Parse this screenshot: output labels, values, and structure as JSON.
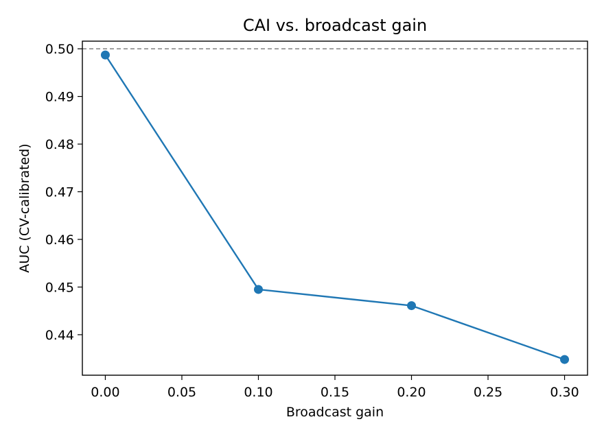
{
  "chart_data": {
    "type": "line",
    "title": "CAI vs. broadcast gain",
    "xlabel": "Broadcast gain",
    "ylabel": "AUC (CV-calibrated)",
    "xlim": [
      -0.015,
      0.315
    ],
    "ylim": [
      0.4315,
      0.5016
    ],
    "xticks": [
      0.0,
      0.05,
      0.1,
      0.15,
      0.2,
      0.25,
      0.3
    ],
    "xtick_labels": [
      "0.00",
      "0.05",
      "0.10",
      "0.15",
      "0.20",
      "0.25",
      "0.30"
    ],
    "yticks": [
      0.44,
      0.45,
      0.46,
      0.47,
      0.48,
      0.49,
      0.5
    ],
    "ytick_labels": [
      "0.44",
      "0.45",
      "0.46",
      "0.47",
      "0.48",
      "0.49",
      "0.50"
    ],
    "grid": false,
    "legend": false,
    "reference_line": {
      "y": 0.5,
      "style": "dashed",
      "color": "#808080"
    },
    "series": [
      {
        "x": [
          0.0,
          0.1,
          0.2,
          0.3
        ],
        "y": [
          0.4987,
          0.4495,
          0.4461,
          0.4348
        ],
        "color": "#1f77b4",
        "marker": "circle"
      }
    ]
  }
}
